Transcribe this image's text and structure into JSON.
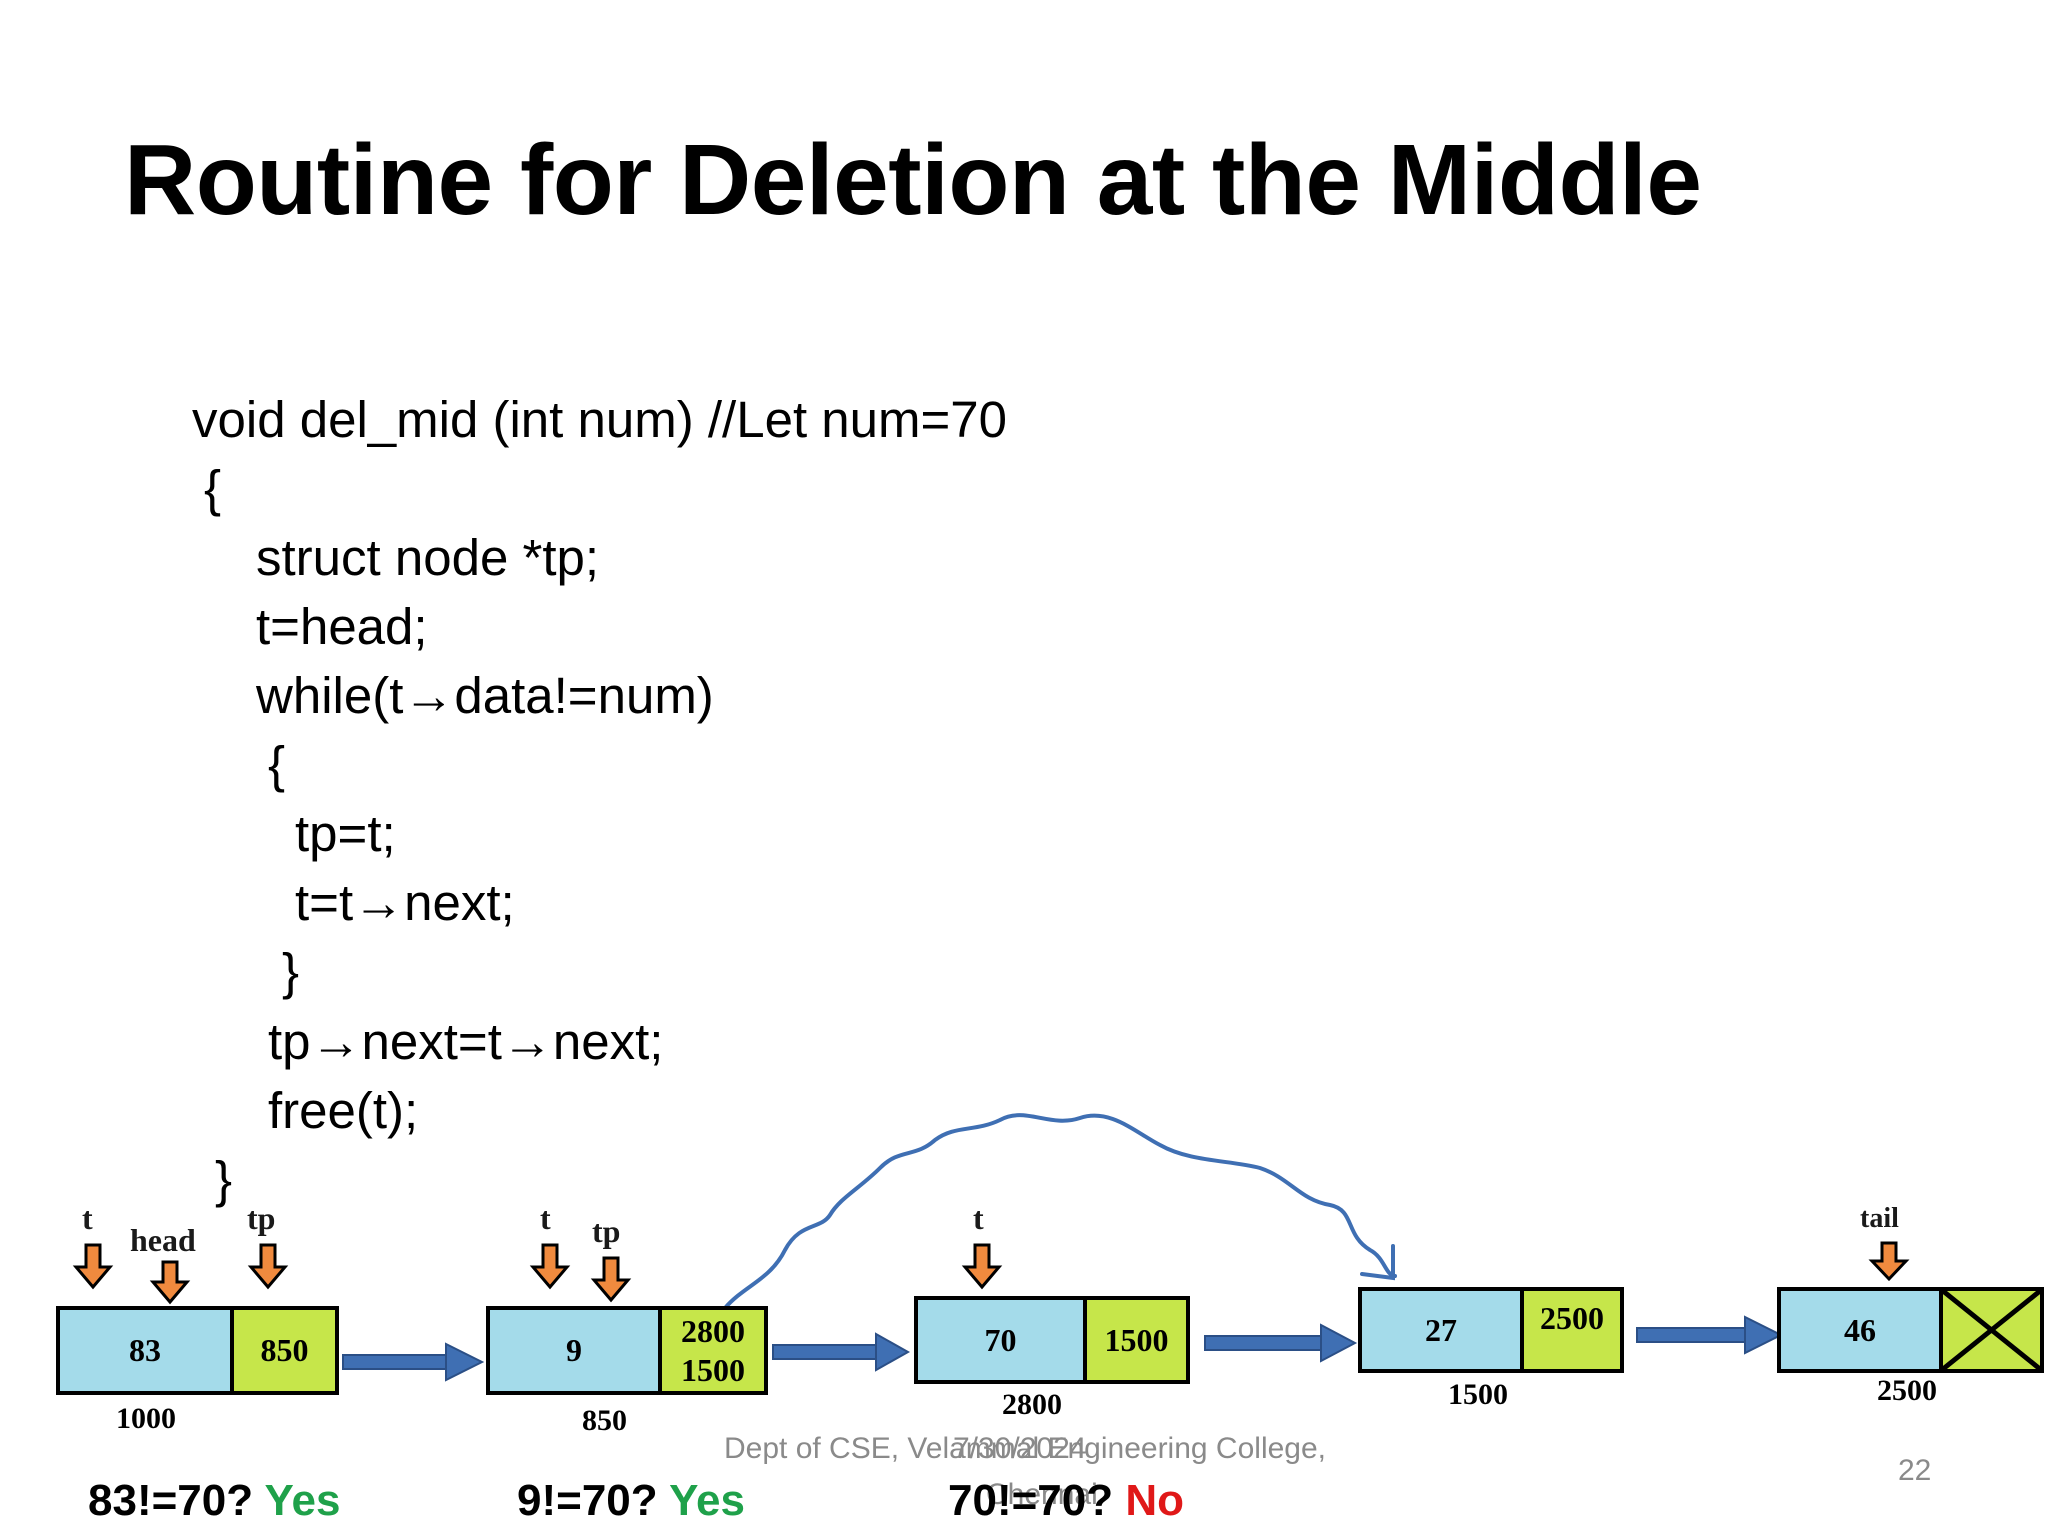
{
  "slide": {
    "title": "Routine for Deletion at the Middle",
    "code_lines": [
      "void del_mid (int num) //Let num=70",
      "{",
      "struct node *tp;",
      "t=head;",
      "while(t→data!=num)",
      "{",
      "tp=t;",
      "t=t→next;",
      "}",
      "tp→next=t→next;",
      "free(t);",
      "}"
    ],
    "nodes": [
      {
        "data": "83",
        "next": "850",
        "address": "1000"
      },
      {
        "data": "9",
        "next": "2800",
        "next2": "1500",
        "address": "850"
      },
      {
        "data": "70",
        "next": "1500",
        "address": "2800"
      },
      {
        "data": "27",
        "next": "2500",
        "address": "1500"
      },
      {
        "data": "46",
        "next": "",
        "address": "2500"
      }
    ],
    "pointers": {
      "t1": "t",
      "head": "head",
      "tp1": "tp",
      "t2": "t",
      "tp2": "tp",
      "t3": "t",
      "tail": "tail"
    },
    "comparisons": [
      {
        "expr": "83!=70?",
        "result": "Yes",
        "color": "#1fa14a"
      },
      {
        "expr": "9!=70?",
        "result": "Yes",
        "color": "#1fa14a"
      },
      {
        "expr": "70!=70?",
        "result": "No",
        "color": "#e01818"
      }
    ],
    "footer": {
      "dept": "Dept of CSE, Velammal Engineering College,",
      "city": "Chennai",
      "date": "7/30/2024",
      "page": "22"
    },
    "colors": {
      "data_cell": "#a4dbea",
      "next_cell": "#c6e64a",
      "arrow_blue": "#3f6fb3",
      "pointer_arrow": "#f08a3e"
    }
  }
}
